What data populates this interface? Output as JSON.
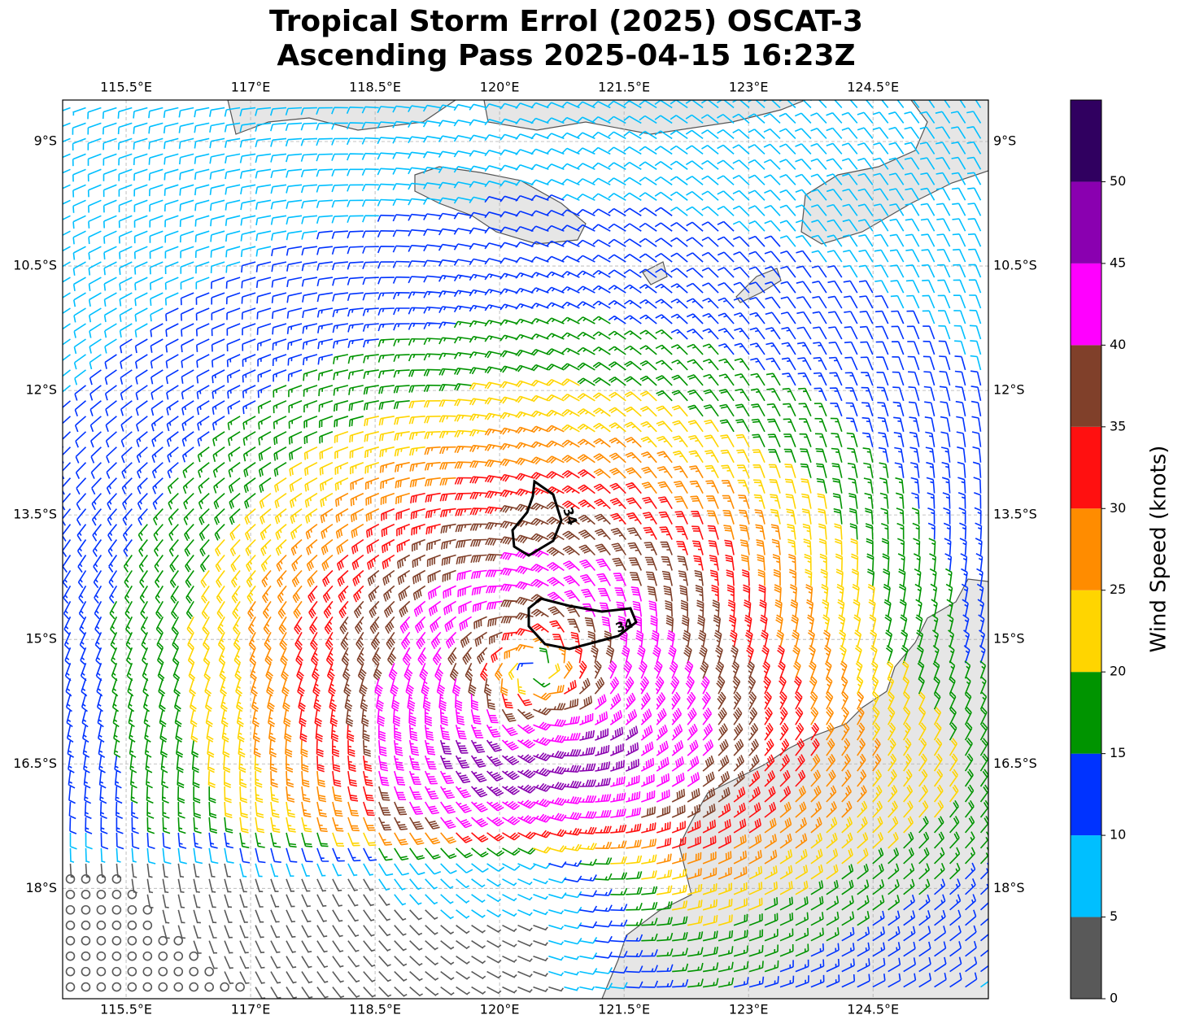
{
  "chart_data": {
    "type": "map",
    "title": [
      "Tropical Storm Errol (2025) OSCAT-3",
      "Ascending Pass 2025-04-15 16:23Z"
    ],
    "xlim": [
      114.735,
      125.89
    ],
    "ylim": [
      -19.33,
      -8.5
    ],
    "xticks": [
      {
        "value": 115.5,
        "label": "115.5°E"
      },
      {
        "value": 117,
        "label": "117°E"
      },
      {
        "value": 118.5,
        "label": "118.5°E"
      },
      {
        "value": 120,
        "label": "120°E"
      },
      {
        "value": 121.5,
        "label": "121.5°E"
      },
      {
        "value": 123,
        "label": "123°E"
      },
      {
        "value": 124.5,
        "label": "124.5°E"
      }
    ],
    "yticks": [
      {
        "value": -9,
        "label": "9°S"
      },
      {
        "value": -10.5,
        "label": "10.5°S"
      },
      {
        "value": -12,
        "label": "12°S"
      },
      {
        "value": -13.5,
        "label": "13.5°S"
      },
      {
        "value": -15,
        "label": "15°S"
      },
      {
        "value": -16.5,
        "label": "16.5°S"
      },
      {
        "value": -18,
        "label": "18°S"
      }
    ],
    "grid": true,
    "contour_levels": [
      34
    ],
    "colorbar": {
      "label": "Wind Speed (knots)",
      "lim": [
        0,
        55
      ],
      "bounds": [
        0,
        5,
        10,
        15,
        20,
        25,
        30,
        35,
        40,
        45,
        50,
        55
      ],
      "colors": [
        "#595959",
        "#00bfff",
        "#0033ff",
        "#009400",
        "#ffd500",
        "#ff8c00",
        "#ff1010",
        "#80402a",
        "#ff00ff",
        "#8a00b0",
        "#300060"
      ],
      "ticks": [
        0,
        5,
        10,
        15,
        20,
        25,
        30,
        35,
        40,
        45,
        50
      ]
    }
  }
}
